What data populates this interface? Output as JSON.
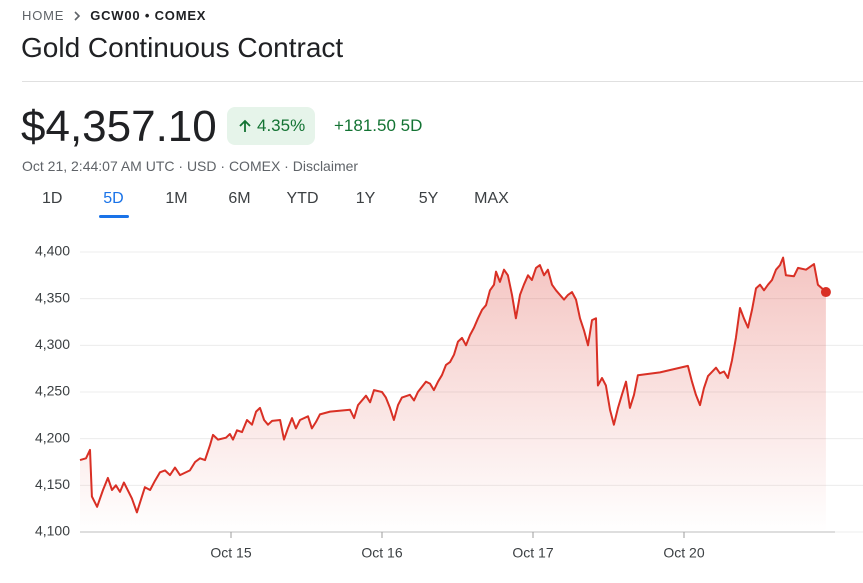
{
  "breadcrumb": {
    "home": "HOME",
    "symbol": "GCW00 • COMEX"
  },
  "title": "Gold Continuous Contract",
  "price": "$4,357.10",
  "change_percent": "4.35%",
  "change": "+181.50 5D",
  "meta": "Oct 21, 2:44:07 AM UTC · USD · COMEX · Disclaimer",
  "ranges": [
    "1D",
    "5D",
    "1M",
    "6M",
    "YTD",
    "1Y",
    "5Y",
    "MAX"
  ],
  "active_range": 1,
  "chart_data": {
    "type": "line",
    "color": "#d93025",
    "grid": true,
    "xlim": [
      0,
      5
    ],
    "xticks": [
      {
        "value": 1,
        "label": "Oct 15"
      },
      {
        "value": 2,
        "label": "Oct 16"
      },
      {
        "value": 3,
        "label": "Oct 17"
      },
      {
        "value": 4,
        "label": "Oct 20"
      }
    ],
    "ylim": [
      4100,
      4400
    ],
    "yticks": [
      {
        "value": 4100,
        "label": "4,100"
      },
      {
        "value": 4150,
        "label": "4,150"
      },
      {
        "value": 4200,
        "label": "4,200"
      },
      {
        "value": 4250,
        "label": "4,250"
      },
      {
        "value": 4300,
        "label": "4,300"
      },
      {
        "value": 4350,
        "label": "4,350"
      },
      {
        "value": 4400,
        "label": "4,400"
      }
    ],
    "x": [
      0,
      0.04,
      0.066,
      0.079,
      0.113,
      0.152,
      0.185,
      0.212,
      0.238,
      0.265,
      0.291,
      0.344,
      0.377,
      0.43,
      0.464,
      0.497,
      0.53,
      0.563,
      0.596,
      0.629,
      0.662,
      0.728,
      0.762,
      0.795,
      0.828,
      0.861,
      0.881,
      0.914,
      0.967,
      0.993,
      1.013,
      1.04,
      1.073,
      1.106,
      1.139,
      1.166,
      1.192,
      1.219,
      1.245,
      1.272,
      1.325,
      1.351,
      1.377,
      1.404,
      1.43,
      1.457,
      1.51,
      1.536,
      1.563,
      1.589,
      1.656,
      1.788,
      1.815,
      1.841,
      1.894,
      1.921,
      1.947,
      2.0,
      2.026,
      2.053,
      2.079,
      2.106,
      2.132,
      2.185,
      2.212,
      2.238,
      2.291,
      2.318,
      2.344,
      2.371,
      2.397,
      2.424,
      2.45,
      2.477,
      2.503,
      2.53,
      2.556,
      2.583,
      2.609,
      2.636,
      2.662,
      2.689,
      2.715,
      2.742,
      2.755,
      2.781,
      2.808,
      2.834,
      2.861,
      2.887,
      2.914,
      2.94,
      2.967,
      2.993,
      3.02,
      3.046,
      3.073,
      3.099,
      3.126,
      3.152,
      3.205,
      3.232,
      3.258,
      3.285,
      3.311,
      3.338,
      3.364,
      3.391,
      3.417,
      3.43,
      3.457,
      3.483,
      3.51,
      3.536,
      3.563,
      3.589,
      3.616,
      3.642,
      3.669,
      3.695,
      3.841,
      4.026,
      4.053,
      4.079,
      4.106,
      4.132,
      4.159,
      4.212,
      4.238,
      4.265,
      4.291,
      4.318,
      4.344,
      4.371,
      4.397,
      4.424,
      4.45,
      4.477,
      4.503,
      4.53,
      4.556,
      4.583,
      4.609,
      4.636,
      4.656,
      4.675,
      4.728,
      4.755,
      4.808,
      4.861,
      4.887,
      4.914,
      4.94
    ],
    "values": [
      4177,
      4179,
      4188,
      4138,
      4127,
      4145,
      4158,
      4145,
      4150,
      4143,
      4153,
      4136,
      4121,
      4148,
      4145,
      4155,
      4164,
      4166,
      4161,
      4169,
      4161,
      4166,
      4175,
      4179,
      4177,
      4193,
      4204,
      4199,
      4201,
      4205,
      4199,
      4209,
      4207,
      4220,
      4215,
      4229,
      4233,
      4220,
      4215,
      4219,
      4220,
      4199,
      4211,
      4222,
      4211,
      4220,
      4224,
      4211,
      4218,
      4226,
      4229,
      4231,
      4222,
      4236,
      4246,
      4239,
      4252,
      4250,
      4244,
      4233,
      4220,
      4236,
      4244,
      4247,
      4241,
      4250,
      4261,
      4259,
      4252,
      4261,
      4268,
      4279,
      4282,
      4290,
      4304,
      4308,
      4300,
      4311,
      4319,
      4329,
      4338,
      4343,
      4359,
      4365,
      4379,
      4368,
      4381,
      4375,
      4354,
      4329,
      4354,
      4365,
      4375,
      4370,
      4383,
      4386,
      4375,
      4381,
      4365,
      4359,
      4349,
      4354,
      4357,
      4349,
      4329,
      4316,
      4300,
      4327,
      4329,
      4257,
      4265,
      4257,
      4231,
      4215,
      4233,
      4247,
      4261,
      4233,
      4247,
      4268,
      4271,
      4278,
      4261,
      4247,
      4236,
      4254,
      4267,
      4276,
      4270,
      4272,
      4265,
      4284,
      4308,
      4340,
      4329,
      4319,
      4338,
      4361,
      4365,
      4359,
      4365,
      4370,
      4381,
      4386,
      4394,
      4375,
      4374,
      4383,
      4381,
      4387,
      4365,
      4361,
      4357.1
    ]
  }
}
